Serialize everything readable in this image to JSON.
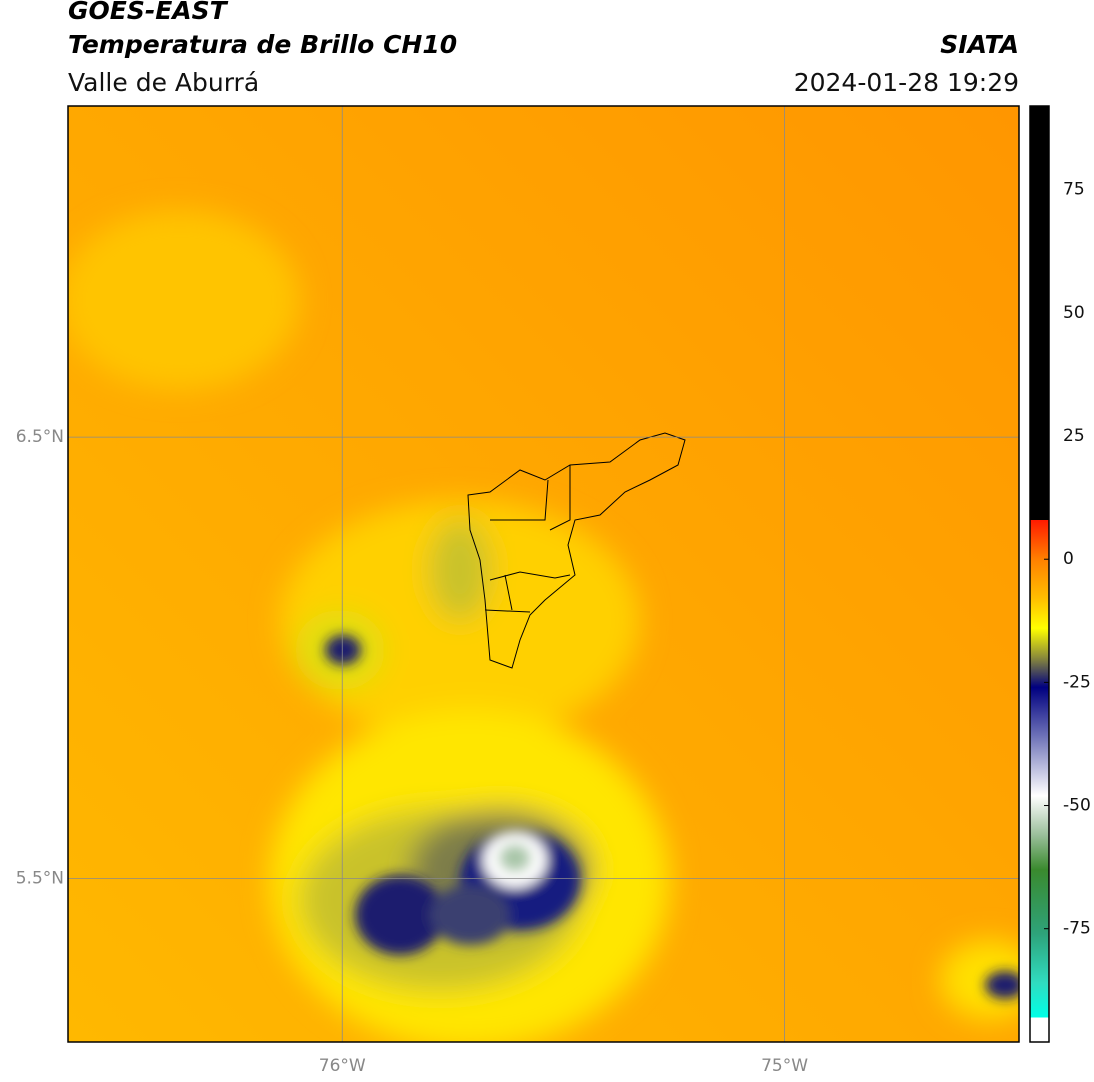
{
  "header": {
    "title": "GOES-EAST",
    "subtitle": "Temperatura de Brillo CH10",
    "region": "Valle de Aburrá",
    "source": "SIATA",
    "datetime": "2024-01-28 19:29"
  },
  "map": {
    "xlim": [
      -76.62,
      -74.47
    ],
    "ylim": [
      5.13,
      7.25
    ],
    "xticks": [
      {
        "value": -76,
        "label": "76°W"
      },
      {
        "value": -75,
        "label": "75°W"
      }
    ],
    "yticks": [
      {
        "value": 6.5,
        "label": "6.5°N"
      },
      {
        "value": 5.5,
        "label": "5.5°N"
      }
    ],
    "grid": true
  },
  "colorbar": {
    "lim": [
      -98,
      92
    ],
    "ticks": [
      -75,
      -50,
      -25,
      0,
      25,
      50,
      75
    ],
    "stops": [
      {
        "value": 92,
        "color": "#000000"
      },
      {
        "value": 8,
        "color": "#000000"
      },
      {
        "value": 8,
        "color": "#ff1a00"
      },
      {
        "value": 0,
        "color": "#ff8000"
      },
      {
        "value": -8,
        "color": "#ffbf00"
      },
      {
        "value": -14,
        "color": "#ffff00"
      },
      {
        "value": -20,
        "color": "#8a8a3a"
      },
      {
        "value": -26,
        "color": "#000080"
      },
      {
        "value": -36,
        "color": "#6f73b8"
      },
      {
        "value": -48,
        "color": "#ffffff"
      },
      {
        "value": -56,
        "color": "#9abf9a"
      },
      {
        "value": -63,
        "color": "#3a8a2e"
      },
      {
        "value": -76,
        "color": "#2ea37a"
      },
      {
        "value": -86,
        "color": "#30dcc0"
      },
      {
        "value": -93,
        "color": "#00ffe6"
      },
      {
        "value": -93,
        "color": "#ffffff"
      },
      {
        "value": -98,
        "color": "#ffffff"
      }
    ]
  }
}
